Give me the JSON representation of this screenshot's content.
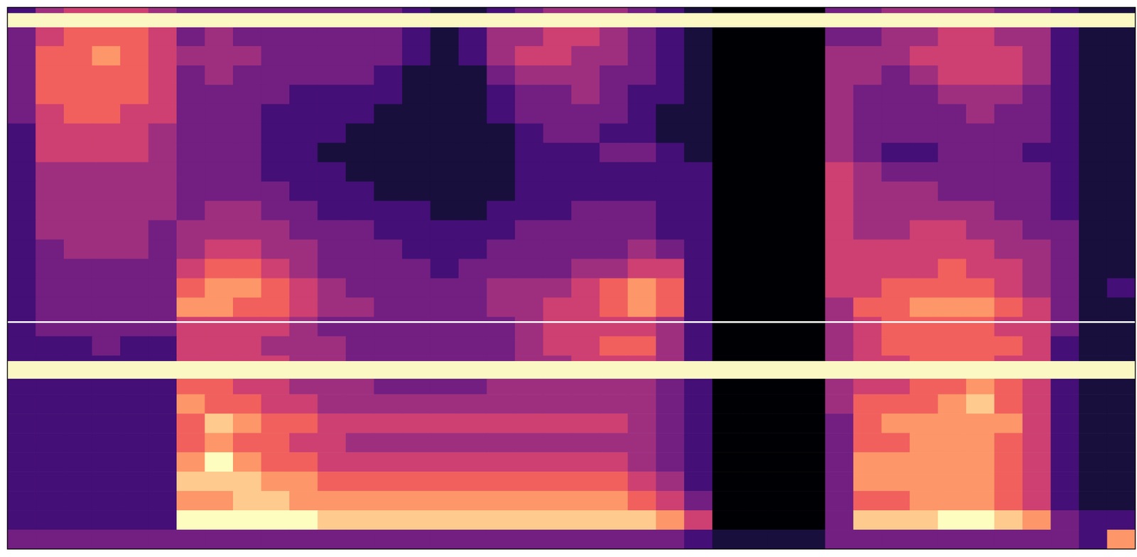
{
  "chart_data": {
    "type": "heatmap",
    "tick_labels": false,
    "cells": [
      [
        2,
        4,
        5,
        5,
        5,
        4,
        3,
        3,
        3,
        3,
        3,
        3,
        3,
        3,
        2,
        1,
        1,
        2,
        3,
        4,
        4,
        4,
        3,
        2,
        1,
        0,
        0,
        0,
        0,
        3,
        3,
        4,
        4,
        4,
        4,
        3,
        3,
        2,
        1,
        1
      ],
      [
        3,
        5,
        6,
        6,
        6,
        5,
        3,
        4,
        3,
        3,
        3,
        3,
        3,
        3,
        2,
        1,
        2,
        4,
        4,
        5,
        5,
        4,
        3,
        2,
        1,
        0,
        0,
        0,
        0,
        3,
        3,
        4,
        4,
        5,
        5,
        4,
        4,
        2,
        1,
        1
      ],
      [
        3,
        6,
        6,
        7,
        6,
        5,
        4,
        4,
        4,
        3,
        3,
        3,
        3,
        3,
        2,
        1,
        2,
        4,
        5,
        5,
        4,
        4,
        3,
        2,
        1,
        0,
        0,
        0,
        0,
        4,
        4,
        4,
        5,
        5,
        5,
        5,
        4,
        2,
        1,
        1
      ],
      [
        3,
        6,
        6,
        6,
        6,
        5,
        3,
        4,
        3,
        3,
        3,
        3,
        3,
        2,
        1,
        1,
        1,
        3,
        4,
        4,
        4,
        3,
        3,
        2,
        1,
        0,
        0,
        0,
        0,
        4,
        4,
        3,
        4,
        5,
        5,
        5,
        4,
        2,
        1,
        1
      ],
      [
        3,
        6,
        6,
        6,
        6,
        5,
        3,
        3,
        3,
        3,
        2,
        2,
        2,
        2,
        1,
        1,
        1,
        2,
        3,
        3,
        4,
        3,
        2,
        2,
        1,
        0,
        0,
        0,
        0,
        4,
        3,
        3,
        3,
        4,
        4,
        4,
        3,
        2,
        1,
        1
      ],
      [
        3,
        5,
        6,
        6,
        5,
        5,
        3,
        3,
        3,
        2,
        2,
        2,
        2,
        1,
        1,
        1,
        1,
        2,
        3,
        3,
        3,
        3,
        2,
        1,
        1,
        0,
        0,
        0,
        0,
        4,
        3,
        3,
        3,
        3,
        4,
        3,
        3,
        2,
        1,
        1
      ],
      [
        2,
        5,
        5,
        5,
        5,
        4,
        3,
        3,
        3,
        2,
        2,
        2,
        1,
        1,
        1,
        1,
        1,
        1,
        2,
        3,
        3,
        2,
        2,
        1,
        1,
        0,
        0,
        0,
        0,
        4,
        3,
        3,
        3,
        3,
        3,
        3,
        3,
        2,
        1,
        1
      ],
      [
        2,
        5,
        5,
        5,
        5,
        4,
        3,
        3,
        3,
        2,
        2,
        1,
        1,
        1,
        1,
        1,
        1,
        1,
        2,
        2,
        2,
        3,
        3,
        2,
        1,
        0,
        0,
        0,
        0,
        4,
        3,
        2,
        2,
        3,
        3,
        3,
        2,
        2,
        1,
        1
      ],
      [
        2,
        4,
        4,
        4,
        4,
        4,
        3,
        3,
        3,
        2,
        2,
        2,
        1,
        1,
        1,
        1,
        1,
        1,
        2,
        2,
        2,
        2,
        2,
        2,
        2,
        0,
        0,
        0,
        0,
        5,
        4,
        3,
        3,
        3,
        3,
        3,
        3,
        2,
        1,
        1
      ],
      [
        2,
        4,
        4,
        4,
        4,
        4,
        3,
        3,
        3,
        3,
        2,
        2,
        2,
        1,
        1,
        1,
        1,
        1,
        2,
        2,
        2,
        2,
        2,
        2,
        2,
        0,
        0,
        0,
        0,
        5,
        4,
        4,
        4,
        3,
        3,
        3,
        3,
        2,
        1,
        1
      ],
      [
        2,
        4,
        4,
        4,
        4,
        4,
        3,
        4,
        4,
        3,
        3,
        2,
        2,
        2,
        2,
        1,
        1,
        2,
        2,
        2,
        3,
        3,
        3,
        2,
        2,
        0,
        0,
        0,
        0,
        5,
        4,
        4,
        4,
        4,
        4,
        3,
        3,
        2,
        1,
        1
      ],
      [
        2,
        4,
        4,
        4,
        4,
        3,
        4,
        4,
        4,
        4,
        3,
        3,
        3,
        2,
        2,
        2,
        2,
        2,
        3,
        3,
        3,
        3,
        3,
        2,
        2,
        0,
        0,
        0,
        0,
        5,
        4,
        4,
        5,
        5,
        4,
        4,
        3,
        3,
        1,
        1
      ],
      [
        2,
        3,
        4,
        4,
        4,
        3,
        4,
        5,
        5,
        4,
        4,
        3,
        3,
        3,
        2,
        2,
        2,
        3,
        3,
        3,
        3,
        3,
        4,
        3,
        2,
        0,
        0,
        0,
        0,
        5,
        5,
        5,
        5,
        5,
        5,
        4,
        4,
        3,
        1,
        1
      ],
      [
        2,
        3,
        3,
        3,
        3,
        3,
        5,
        6,
        6,
        5,
        4,
        3,
        3,
        3,
        3,
        2,
        3,
        3,
        3,
        3,
        4,
        4,
        5,
        5,
        2,
        0,
        0,
        0,
        0,
        5,
        5,
        5,
        5,
        6,
        5,
        5,
        4,
        3,
        1,
        1
      ],
      [
        2,
        3,
        3,
        3,
        3,
        3,
        6,
        7,
        7,
        6,
        5,
        4,
        3,
        3,
        3,
        3,
        3,
        4,
        4,
        4,
        5,
        6,
        7,
        6,
        2,
        0,
        0,
        0,
        0,
        5,
        5,
        6,
        6,
        6,
        6,
        5,
        4,
        3,
        1,
        2
      ],
      [
        2,
        3,
        3,
        3,
        3,
        3,
        7,
        7,
        6,
        6,
        5,
        4,
        4,
        3,
        3,
        3,
        3,
        4,
        4,
        5,
        5,
        6,
        7,
        6,
        2,
        0,
        0,
        0,
        0,
        4,
        6,
        6,
        7,
        7,
        7,
        6,
        5,
        3,
        1,
        1
      ],
      [
        2,
        3,
        3,
        3,
        3,
        3,
        5,
        5,
        5,
        5,
        4,
        3,
        3,
        3,
        3,
        3,
        3,
        3,
        4,
        5,
        5,
        5,
        5,
        4,
        2,
        0,
        0,
        0,
        0,
        4,
        5,
        6,
        6,
        6,
        6,
        5,
        5,
        3,
        1,
        1
      ],
      [
        2,
        2,
        2,
        3,
        2,
        2,
        5,
        5,
        5,
        4,
        4,
        4,
        3,
        3,
        3,
        3,
        3,
        3,
        4,
        5,
        5,
        6,
        6,
        4,
        2,
        0,
        0,
        0,
        0,
        4,
        5,
        6,
        6,
        6,
        6,
        6,
        5,
        2,
        1,
        1
      ],
      [
        2,
        2,
        2,
        2,
        2,
        2,
        5,
        5,
        5,
        5,
        4,
        4,
        3,
        3,
        3,
        3,
        3,
        3,
        4,
        4,
        5,
        5,
        5,
        4,
        2,
        0,
        0,
        0,
        0,
        4,
        5,
        5,
        6,
        6,
        6,
        5,
        5,
        2,
        1,
        1
      ],
      [
        2,
        2,
        2,
        2,
        2,
        2,
        6,
        6,
        5,
        5,
        4,
        4,
        4,
        3,
        3,
        3,
        3,
        4,
        4,
        4,
        4,
        4,
        4,
        3,
        2,
        0,
        0,
        0,
        0,
        4,
        5,
        5,
        6,
        6,
        7,
        6,
        5,
        2,
        1,
        1
      ],
      [
        2,
        2,
        2,
        2,
        2,
        2,
        7,
        6,
        6,
        5,
        5,
        4,
        4,
        4,
        4,
        4,
        4,
        4,
        4,
        4,
        4,
        4,
        4,
        3,
        2,
        0,
        0,
        0,
        0,
        4,
        6,
        6,
        6,
        7,
        8,
        6,
        5,
        2,
        1,
        1
      ],
      [
        2,
        2,
        2,
        2,
        2,
        2,
        6,
        8,
        7,
        6,
        6,
        5,
        5,
        5,
        5,
        5,
        5,
        5,
        5,
        5,
        5,
        5,
        4,
        3,
        2,
        0,
        0,
        0,
        0,
        3,
        6,
        7,
        7,
        7,
        7,
        7,
        5,
        2,
        1,
        1
      ],
      [
        2,
        2,
        2,
        2,
        2,
        2,
        6,
        7,
        6,
        6,
        5,
        5,
        4,
        4,
        4,
        4,
        4,
        4,
        4,
        4,
        4,
        4,
        4,
        3,
        2,
        0,
        0,
        0,
        0,
        3,
        6,
        6,
        7,
        7,
        7,
        6,
        5,
        2,
        1,
        1
      ],
      [
        2,
        2,
        2,
        2,
        2,
        2,
        7,
        9,
        7,
        6,
        6,
        5,
        5,
        5,
        5,
        5,
        5,
        5,
        5,
        5,
        5,
        5,
        4,
        3,
        2,
        0,
        0,
        0,
        0,
        3,
        7,
        7,
        7,
        7,
        7,
        6,
        5,
        2,
        1,
        1
      ],
      [
        2,
        2,
        2,
        2,
        2,
        2,
        8,
        8,
        8,
        7,
        7,
        6,
        6,
        6,
        6,
        6,
        6,
        6,
        6,
        6,
        6,
        6,
        5,
        4,
        2,
        0,
        0,
        0,
        0,
        3,
        7,
        7,
        7,
        7,
        7,
        6,
        5,
        2,
        1,
        1
      ],
      [
        2,
        2,
        2,
        2,
        2,
        2,
        7,
        7,
        8,
        8,
        7,
        7,
        7,
        7,
        7,
        7,
        7,
        7,
        7,
        7,
        7,
        7,
        6,
        5,
        3,
        0,
        0,
        0,
        0,
        3,
        6,
        6,
        7,
        7,
        7,
        6,
        5,
        2,
        1,
        1
      ],
      [
        2,
        2,
        2,
        2,
        2,
        2,
        9,
        9,
        9,
        9,
        9,
        8,
        8,
        8,
        8,
        8,
        8,
        8,
        8,
        8,
        8,
        8,
        8,
        7,
        5,
        0,
        0,
        0,
        0,
        3,
        8,
        8,
        8,
        9,
        9,
        8,
        7,
        3,
        2,
        2
      ],
      [
        3,
        3,
        3,
        3,
        3,
        3,
        3,
        3,
        3,
        3,
        3,
        3,
        3,
        3,
        3,
        3,
        3,
        3,
        3,
        3,
        3,
        3,
        3,
        3,
        2,
        1,
        1,
        1,
        1,
        3,
        3,
        3,
        3,
        3,
        3,
        3,
        3,
        3,
        2,
        7
      ]
    ]
  }
}
